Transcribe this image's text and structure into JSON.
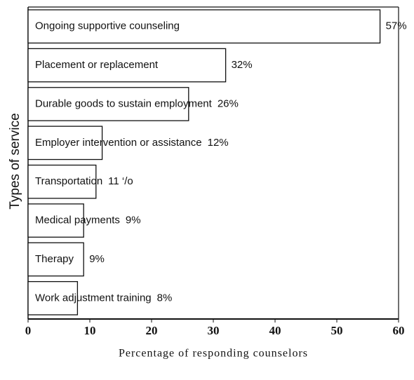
{
  "chart_data": {
    "type": "bar",
    "orientation": "horizontal",
    "categories": [
      "Ongoing supportive counseling",
      "Placement or replacement",
      "Durable goods to sustain employment",
      "Employer intervention or assistance",
      "Transportation",
      "Medical payments",
      "Therapy",
      "Work adjustment training"
    ],
    "values": [
      57,
      32,
      26,
      12,
      11,
      9,
      9,
      8
    ],
    "value_labels": [
      "57%",
      "32%",
      "26%",
      "12%",
      "11 ‘/o",
      "9%",
      "9%",
      "8%"
    ],
    "xlabel": "Percentage of responding counselors",
    "ylabel": "Types of service",
    "xlim": [
      0,
      60
    ],
    "xticks": [
      0,
      10,
      20,
      30,
      40,
      50,
      60
    ],
    "color": "#ffffff"
  }
}
